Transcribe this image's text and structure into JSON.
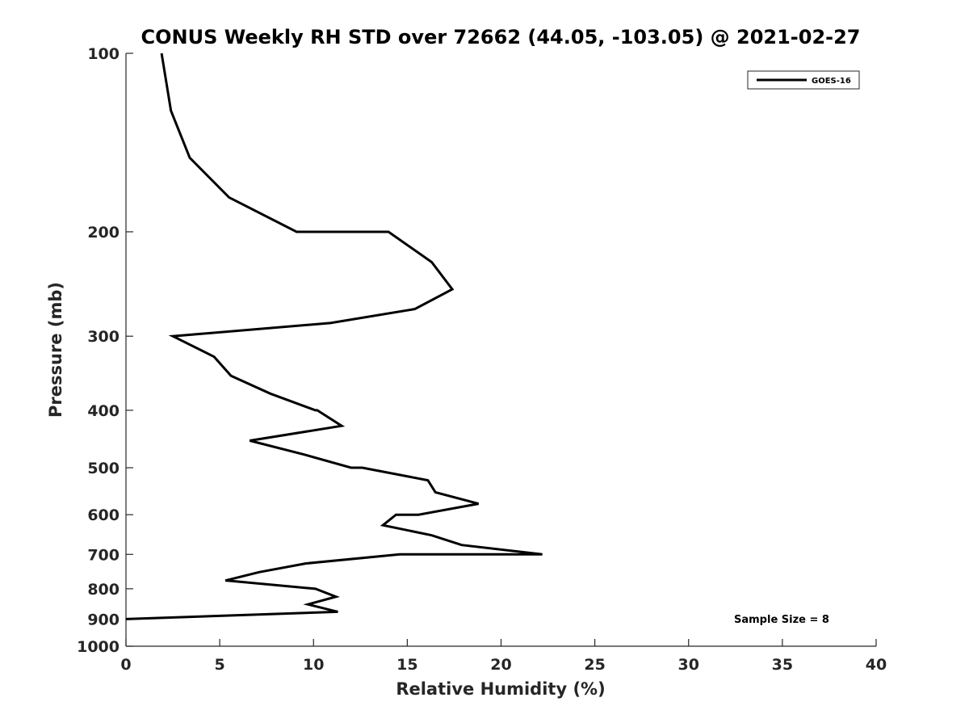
{
  "chart_data": {
    "type": "line",
    "title": "CONUS Weekly RH STD over 72662 (44.05, -103.05) @ 2021-02-27",
    "xlabel": "Relative Humidity (%)",
    "ylabel": "Pressure (mb)",
    "xlim": [
      0,
      40
    ],
    "ylim": [
      100,
      1000
    ],
    "yscale": "log",
    "y_reversed": true,
    "x_ticks": [
      0,
      5,
      10,
      15,
      20,
      25,
      30,
      35,
      40
    ],
    "y_ticks": [
      100,
      200,
      300,
      400,
      500,
      600,
      700,
      800,
      900,
      1000
    ],
    "grid": false,
    "legend_position": "top-right",
    "series": [
      {
        "name": "GOES-16",
        "color": "#000000",
        "points": [
          {
            "x": 1.9,
            "p": 100
          },
          {
            "x": 2.4,
            "p": 125
          },
          {
            "x": 3.4,
            "p": 150
          },
          {
            "x": 5.5,
            "p": 175
          },
          {
            "x": 9.1,
            "p": 200
          },
          {
            "x": 14.0,
            "p": 200
          },
          {
            "x": 16.3,
            "p": 225
          },
          {
            "x": 17.4,
            "p": 250
          },
          {
            "x": 15.4,
            "p": 270
          },
          {
            "x": 10.9,
            "p": 285
          },
          {
            "x": 2.5,
            "p": 300
          },
          {
            "x": 4.7,
            "p": 325
          },
          {
            "x": 5.6,
            "p": 350
          },
          {
            "x": 7.7,
            "p": 375
          },
          {
            "x": 10.1,
            "p": 400
          },
          {
            "x": 10.2,
            "p": 400
          },
          {
            "x": 11.5,
            "p": 425
          },
          {
            "x": 6.6,
            "p": 450
          },
          {
            "x": 9.5,
            "p": 475
          },
          {
            "x": 12.0,
            "p": 500
          },
          {
            "x": 12.6,
            "p": 500
          },
          {
            "x": 16.1,
            "p": 525
          },
          {
            "x": 16.5,
            "p": 550
          },
          {
            "x": 18.8,
            "p": 575
          },
          {
            "x": 15.6,
            "p": 600
          },
          {
            "x": 14.4,
            "p": 600
          },
          {
            "x": 13.7,
            "p": 625
          },
          {
            "x": 16.3,
            "p": 650
          },
          {
            "x": 17.9,
            "p": 675
          },
          {
            "x": 22.2,
            "p": 700
          },
          {
            "x": 14.6,
            "p": 700
          },
          {
            "x": 9.6,
            "p": 725
          },
          {
            "x": 7.1,
            "p": 750
          },
          {
            "x": 5.3,
            "p": 775
          },
          {
            "x": 5.4,
            "p": 775
          },
          {
            "x": 10.1,
            "p": 800
          },
          {
            "x": 11.2,
            "p": 825
          },
          {
            "x": 9.7,
            "p": 850
          },
          {
            "x": 11.3,
            "p": 875
          },
          {
            "x": 0.0,
            "p": 900
          }
        ]
      }
    ],
    "annotations": [
      "Sample Size = 8"
    ]
  }
}
